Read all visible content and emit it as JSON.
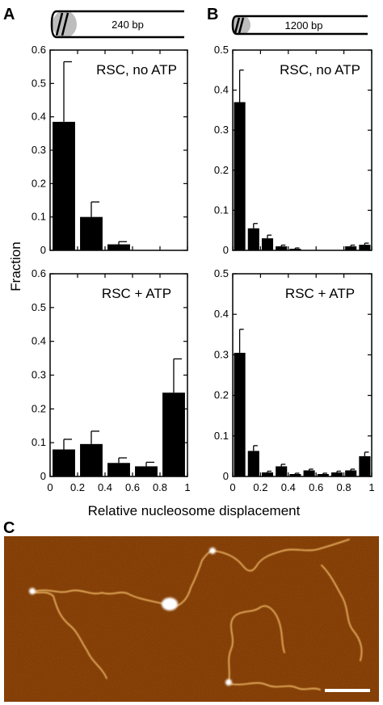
{
  "panel_letters": {
    "a": "A",
    "b": "B",
    "c": "C"
  },
  "schematics": {
    "a": {
      "label": "240 bp"
    },
    "b": {
      "label": "1200 bp"
    }
  },
  "axis_titles": {
    "y": "Fraction",
    "x": "Relative nucleosome displacement"
  },
  "colors": {
    "bar": "#000000",
    "nucleosome": "#bdbdbd",
    "afm_background": "#9a4a08",
    "afm_fiber": "#e8b060",
    "afm_particle": "#ffffff"
  },
  "chart_data": [
    {
      "id": "A-top",
      "type": "bar",
      "title": "RSC, no ATP",
      "x": [
        0.1,
        0.3,
        0.5,
        0.7,
        0.9
      ],
      "values": [
        0.385,
        0.1,
        0.018,
        0,
        0
      ],
      "errors": [
        0.18,
        0.045,
        0.008,
        0,
        0
      ],
      "xlim": [
        0,
        1
      ],
      "ylim": [
        0,
        0.6
      ],
      "yticks": [
        "0",
        "0.1",
        "0.2",
        "0.3",
        "0.4",
        "0.5",
        "0.6"
      ]
    },
    {
      "id": "A-bottom",
      "type": "bar",
      "title": "RSC + ATP",
      "x": [
        0.1,
        0.3,
        0.5,
        0.7,
        0.9
      ],
      "values": [
        0.08,
        0.096,
        0.04,
        0.03,
        0.248
      ],
      "errors": [
        0.03,
        0.038,
        0.015,
        0.012,
        0.1
      ],
      "xlim": [
        0,
        1
      ],
      "ylim": [
        0,
        0.6
      ],
      "yticks": [
        "0",
        "0.1",
        "0.2",
        "0.3",
        "0.4",
        "0.5",
        "0.6"
      ],
      "xticks": [
        "0",
        "0.2",
        "0.4",
        "0.6",
        "0.8",
        "1"
      ]
    },
    {
      "id": "B-top",
      "type": "bar",
      "title": "RSC, no ATP",
      "x": [
        0.05,
        0.15,
        0.25,
        0.35,
        0.45,
        0.55,
        0.65,
        0.75,
        0.85,
        0.95
      ],
      "values": [
        0.37,
        0.055,
        0.03,
        0.01,
        0.004,
        0,
        0,
        0,
        0.01,
        0.014
      ],
      "errors": [
        0.08,
        0.012,
        0.008,
        0.003,
        0.002,
        0,
        0,
        0,
        0.003,
        0.004
      ],
      "xlim": [
        0,
        1
      ],
      "ylim": [
        0,
        0.5
      ],
      "yticks": [
        "0",
        "0.1",
        "0.2",
        "0.3",
        "0.4",
        "0.5"
      ]
    },
    {
      "id": "B-bottom",
      "type": "bar",
      "title": "RSC + ATP",
      "x": [
        0.05,
        0.15,
        0.25,
        0.35,
        0.45,
        0.55,
        0.65,
        0.75,
        0.85,
        0.95
      ],
      "values": [
        0.305,
        0.063,
        0.01,
        0.025,
        0.006,
        0.015,
        0.006,
        0.01,
        0.015,
        0.05
      ],
      "errors": [
        0.058,
        0.013,
        0.003,
        0.005,
        0.002,
        0.003,
        0.002,
        0.003,
        0.003,
        0.01
      ],
      "xlim": [
        0,
        1
      ],
      "ylim": [
        0,
        0.5
      ],
      "yticks": [
        "0",
        "0.1",
        "0.2",
        "0.3",
        "0.4",
        "0.5"
      ],
      "xticks": [
        "0",
        "0.2",
        "0.4",
        "0.6",
        "0.8",
        "1"
      ]
    }
  ]
}
